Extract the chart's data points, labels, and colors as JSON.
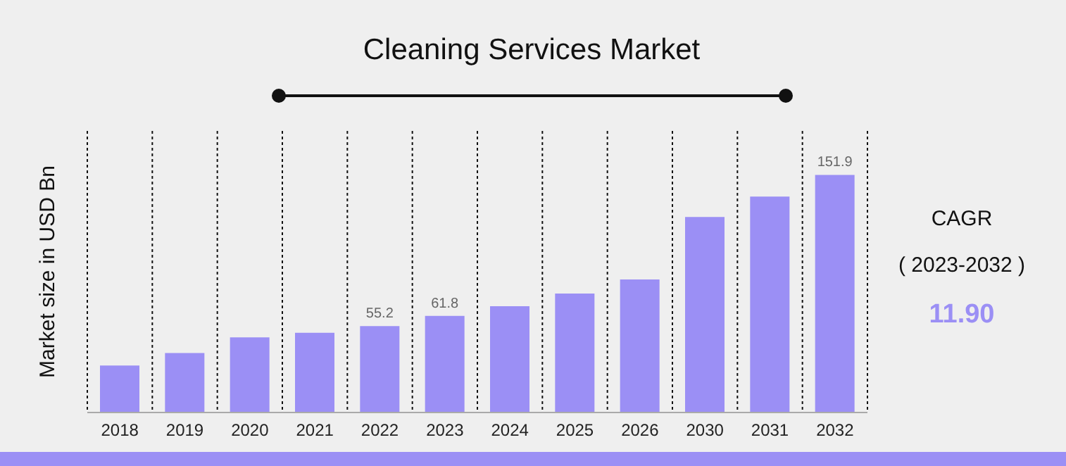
{
  "chart_data": {
    "type": "bar",
    "title": "Cleaning Services Market",
    "ylabel": "Market size in USD Bn",
    "categories": [
      "2018",
      "2019",
      "2020",
      "2021",
      "2022",
      "2023",
      "2024",
      "2025",
      "2026",
      "2030",
      "2031",
      "2032"
    ],
    "ylim": [
      0,
      180
    ],
    "tick_labels": "x",
    "values": [
      30,
      38,
      48,
      51,
      55.2,
      61.8,
      68,
      76,
      85,
      125,
      138,
      151.9
    ],
    "value_labels": [
      null,
      null,
      null,
      null,
      "55.2",
      "61.8",
      null,
      null,
      null,
      null,
      null,
      "151.9"
    ],
    "color": "#9b8ff5",
    "grid": "x",
    "annotations": [
      "CAGR",
      "( 2023-2032 )",
      "11.90"
    ]
  }
}
